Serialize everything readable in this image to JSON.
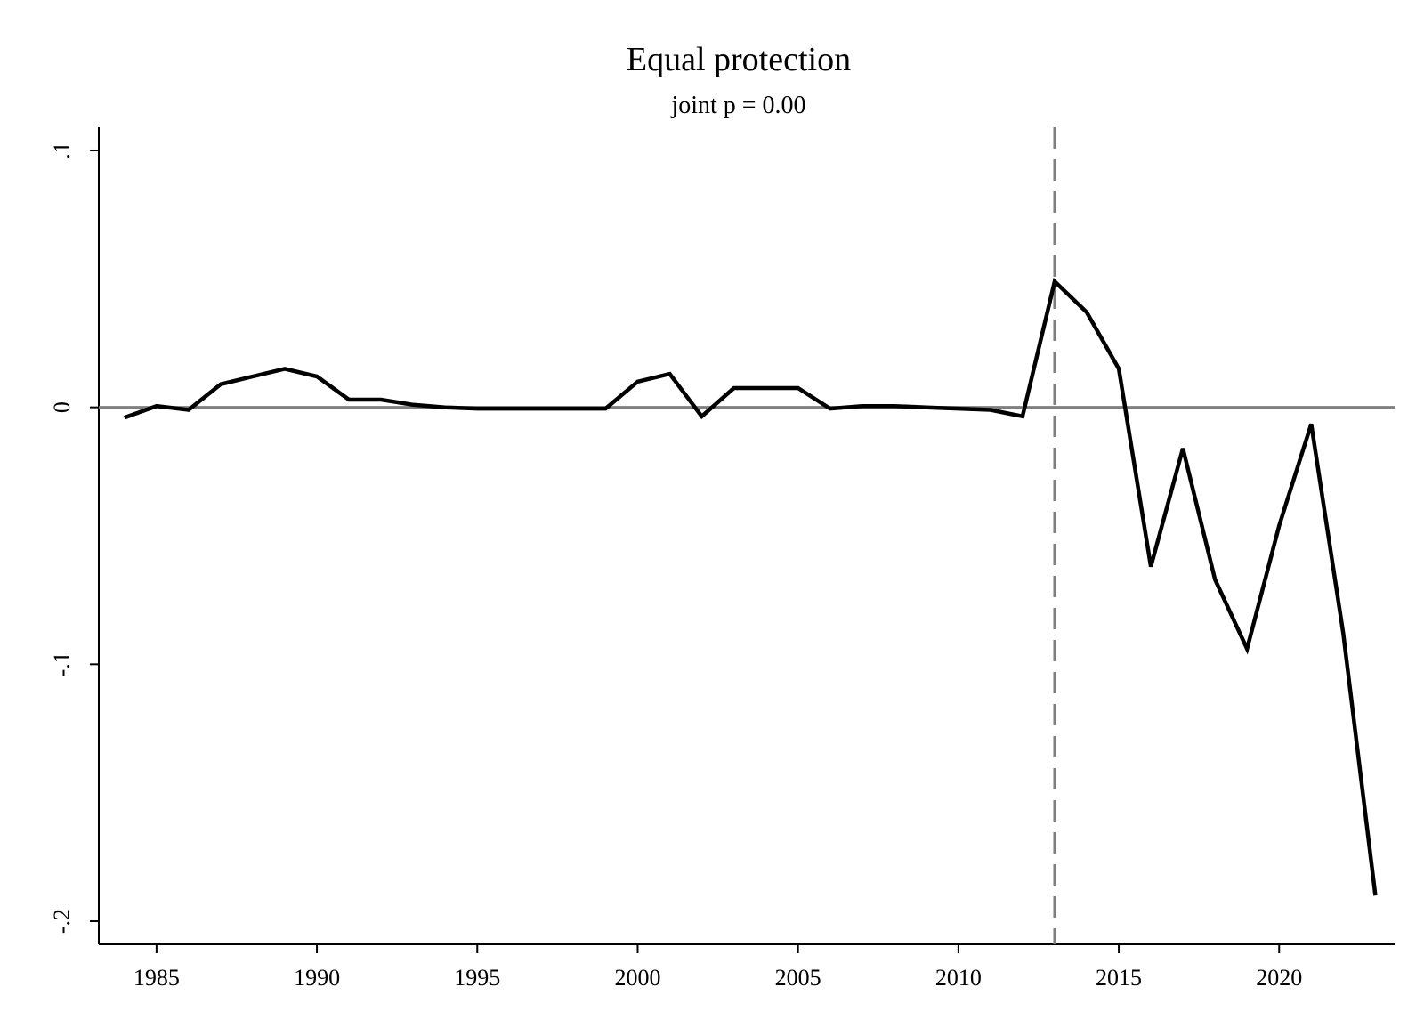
{
  "chart_data": {
    "type": "line",
    "title": "Equal protection",
    "subtitle": "joint p = 0.00",
    "xlabel": "",
    "ylabel": "",
    "xlim": [
      1983.2,
      2023.6
    ],
    "ylim": [
      -0.209,
      0.109
    ],
    "x_ticks": [
      1985,
      1990,
      1995,
      2000,
      2005,
      2010,
      2015,
      2020
    ],
    "x_tick_labels": [
      "1985",
      "1990",
      "1995",
      "2000",
      "2005",
      "2010",
      "2015",
      "2020"
    ],
    "y_ticks": [
      0.1,
      0,
      -0.1,
      -0.2
    ],
    "y_tick_labels": [
      ".1",
      "0",
      "-.1",
      "-.2"
    ],
    "grid": false,
    "legend": "none",
    "zero_line": 0,
    "reference_line_x": 2013,
    "colors": {
      "series": "#000000",
      "zero_line": "#7f7f7f",
      "reference_line": "#7f7f7f",
      "axis": "#000000"
    },
    "series": [
      {
        "x": [
          1984,
          1985,
          1986,
          1987,
          1988,
          1989,
          1990,
          1991,
          1992,
          1993,
          1994,
          1995,
          1996,
          1997,
          1998,
          1999,
          2000,
          2001,
          2002,
          2003,
          2004,
          2005,
          2006,
          2007,
          2008,
          2009,
          2010,
          2011,
          2012,
          2013,
          2014,
          2015,
          2016,
          2017,
          2018,
          2019,
          2020,
          2021,
          2022,
          2023
        ],
        "values": [
          -0.004,
          0.0005,
          -0.001,
          0.009,
          0.012,
          0.015,
          0.012,
          0.003,
          0.003,
          0.001,
          0.0,
          -0.0005,
          -0.0005,
          -0.0005,
          -0.0005,
          -0.0005,
          0.01,
          0.013,
          -0.0035,
          0.0075,
          0.0075,
          0.0075,
          -0.0005,
          0.0005,
          0.0005,
          0.0,
          -0.0005,
          -0.001,
          -0.0035,
          0.049,
          0.037,
          0.015,
          -0.062,
          -0.016,
          -0.067,
          -0.094,
          -0.046,
          -0.0065,
          -0.088,
          -0.19
        ]
      }
    ]
  }
}
